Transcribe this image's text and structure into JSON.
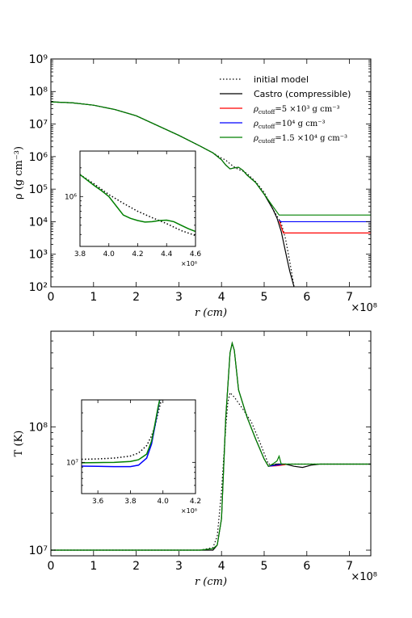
{
  "chart_data": [
    {
      "type": "line",
      "ylabel": "ρ  (g cm⁻³)",
      "xlabel": "r  (cm)",
      "x_multiplier": "×10⁸",
      "x_unit_scale": 100000000.0,
      "xlim": [
        0,
        7.5
      ],
      "ylim": [
        100,
        1000000000
      ],
      "yscale": "log",
      "x_ticks": [
        "0",
        "1",
        "2",
        "3",
        "4",
        "5",
        "6",
        "7"
      ],
      "y_ticks": [
        "10²",
        "10³",
        "10⁴",
        "10⁵",
        "10⁶",
        "10⁷",
        "10⁸",
        "10⁹"
      ],
      "legend_position": "top-right",
      "series": [
        {
          "name": "initial model",
          "color": "#000000",
          "dash": "dotted",
          "x": [
            0,
            0.5,
            1,
            1.5,
            2,
            2.5,
            3,
            3.5,
            3.8,
            4.0,
            4.1,
            4.2,
            4.3,
            4.4,
            4.5,
            4.6,
            4.8,
            5.0,
            5.2,
            5.4,
            5.5,
            5.6,
            5.7
          ],
          "y": [
            48000000,
            45000000,
            38000000,
            28000000,
            18000000,
            9000000,
            4500000,
            2100000,
            1300000,
            900000,
            780000,
            600000,
            480000,
            400000,
            360000,
            300000,
            170000,
            80000,
            25000,
            9000,
            3000,
            600,
            100
          ]
        },
        {
          "name": "Castro (compressible)",
          "color": "#000000",
          "dash": "solid",
          "x": [
            0,
            0.5,
            1,
            1.5,
            2,
            2.5,
            3,
            3.5,
            3.8,
            4.0,
            4.1,
            4.2,
            4.3,
            4.4,
            4.5,
            4.6,
            4.8,
            5.0,
            5.2,
            5.3,
            5.4,
            5.5,
            5.6,
            5.7
          ],
          "y": [
            48000000,
            45000000,
            38000000,
            28000000,
            18000000,
            9000000,
            4500000,
            2100000,
            1300000,
            800000,
            550000,
            420000,
            450000,
            470000,
            380000,
            270000,
            160000,
            70000,
            25000,
            13000,
            5000,
            1200,
            300,
            100
          ]
        },
        {
          "name": "ρ_cutoff = 5 × 10³  g cm⁻³",
          "color": "#ff0000",
          "dash": "solid",
          "x": [
            5.35,
            5.4,
            5.45,
            7.5
          ],
          "y": [
            11000,
            7000,
            4500,
            4500
          ]
        },
        {
          "name": "ρ_cutoff = 10⁴  g cm⁻³",
          "color": "#0000ff",
          "dash": "solid",
          "x": [
            5.35,
            5.4,
            7.5
          ],
          "y": [
            11000,
            10000,
            10000
          ]
        },
        {
          "name": "ρ_cutoff = 1.5 × 10⁴  g cm⁻³",
          "color": "#008000",
          "dash": "solid",
          "x": [
            0,
            0.5,
            1,
            1.5,
            2,
            2.5,
            3,
            3.5,
            3.8,
            4.0,
            4.1,
            4.2,
            4.3,
            4.4,
            4.5,
            4.6,
            4.8,
            5.0,
            5.2,
            5.35,
            5.4,
            7.5
          ],
          "y": [
            48000000,
            45000000,
            38000000,
            28000000,
            18000000,
            9000000,
            4500000,
            2100000,
            1300000,
            800000,
            550000,
            420000,
            450000,
            470000,
            380000,
            270000,
            160000,
            70000,
            30000,
            16000,
            16000,
            16000
          ]
        }
      ],
      "inset": {
        "xlim": [
          3.8,
          4.6
        ],
        "ylim": [
          300000,
          3000000
        ],
        "yscale": "log",
        "x_ticks": [
          "3.8",
          "4.0",
          "4.2",
          "4.4",
          "4.6"
        ],
        "y_ticks": [
          "10⁶"
        ],
        "x_multiplier": "×10⁸",
        "series": [
          {
            "name": "initial model",
            "color": "#000000",
            "dash": "dotted",
            "x": [
              3.8,
              3.9,
              4.0,
              4.1,
              4.2,
              4.3,
              4.4,
              4.5,
              4.6
            ],
            "y": [
              1700000,
              1350000,
              1050000,
              850000,
              700000,
              600000,
              520000,
              440000,
              390000
            ]
          },
          {
            "name": "ρ_cutoff = 1.5 × 10⁴  g cm⁻³",
            "color": "#008000",
            "dash": "solid",
            "x": [
              3.8,
              3.9,
              3.95,
              4.0,
              4.05,
              4.1,
              4.15,
              4.2,
              4.25,
              4.3,
              4.35,
              4.4,
              4.45,
              4.5,
              4.55,
              4.6
            ],
            "y": [
              1700000,
              1300000,
              1150000,
              1000000,
              800000,
              640000,
              590000,
              560000,
              540000,
              545000,
              560000,
              565000,
              545000,
              500000,
              460000,
              430000
            ]
          }
        ]
      }
    },
    {
      "type": "line",
      "ylabel": "T  (K)",
      "xlabel": "r  (cm)",
      "x_multiplier": "×10⁸",
      "x_unit_scale": 100000000.0,
      "xlim": [
        0,
        7.5
      ],
      "ylim": [
        9000000,
        600000000
      ],
      "yscale": "log",
      "x_ticks": [
        "0",
        "1",
        "2",
        "3",
        "4",
        "5",
        "6",
        "7"
      ],
      "y_ticks": [
        "10⁷",
        "10⁸"
      ],
      "series": [
        {
          "name": "initial model",
          "color": "#000000",
          "dash": "dotted",
          "x": [
            0,
            1,
            2,
            3,
            3.5,
            3.8,
            3.9,
            4.0,
            4.1,
            4.15,
            4.2,
            4.3,
            4.5,
            4.7,
            4.9,
            5.1,
            5.2,
            5.4,
            6,
            7,
            7.5
          ],
          "y": [
            10000000,
            10000000,
            10000000,
            10000000,
            10000000,
            10500000,
            13000000,
            30000000,
            100000000,
            160000000,
            190000000,
            175000000,
            140000000,
            110000000,
            75000000,
            50000000,
            50000000,
            50000000,
            50000000,
            50000000,
            50000000
          ]
        },
        {
          "name": "Castro (compressible)",
          "color": "#000000",
          "dash": "solid",
          "x": [
            0,
            1,
            2,
            3,
            3.5,
            3.8,
            3.9,
            4.0,
            4.1,
            4.2,
            4.25,
            4.3,
            4.4,
            4.6,
            4.8,
            5.0,
            5.1,
            5.3,
            5.5,
            5.7,
            5.9,
            6.1,
            6.3,
            7,
            7.5
          ],
          "y": [
            10000000,
            10000000,
            10000000,
            10000000,
            10000000,
            10000000,
            11000000,
            18000000,
            120000000,
            400000000,
            480000000,
            420000000,
            200000000,
            120000000,
            80000000,
            55000000,
            48000000,
            50000000,
            50000000,
            48000000,
            47000000,
            49000000,
            50000000,
            50000000,
            50000000
          ]
        },
        {
          "name": "ρ_cutoff = 5 × 10³  g cm⁻³",
          "color": "#ff0000",
          "dash": "solid",
          "x": [
            5.1,
            5.3,
            5.5
          ],
          "y": [
            48000000,
            48500000,
            49500000
          ]
        },
        {
          "name": "ρ_cutoff = 10⁴  g cm⁻³",
          "color": "#0000ff",
          "dash": "solid",
          "x": [
            5.1,
            5.3,
            5.45
          ],
          "y": [
            48000000,
            49000000,
            50000000
          ]
        },
        {
          "name": "ρ_cutoff = 1.5 × 10⁴  g cm⁻³",
          "color": "#008000",
          "dash": "solid",
          "x": [
            0,
            1,
            2,
            3,
            3.5,
            3.8,
            3.9,
            4.0,
            4.1,
            4.2,
            4.25,
            4.3,
            4.4,
            4.6,
            4.8,
            5.0,
            5.1,
            5.2,
            5.3,
            5.35,
            5.4,
            5.5,
            6,
            7,
            7.5
          ],
          "y": [
            10000000,
            10000000,
            10000000,
            10000000,
            10000000,
            10300000,
            11000000,
            18000000,
            120000000,
            400000000,
            480000000,
            420000000,
            200000000,
            120000000,
            80000000,
            55000000,
            48000000,
            50000000,
            53000000,
            58000000,
            50000000,
            50000000,
            50000000,
            50000000,
            50000000
          ]
        }
      ],
      "inset": {
        "xlim": [
          3.5,
          4.2
        ],
        "ylim": [
          5000000,
          40000000
        ],
        "yscale": "log",
        "x_ticks": [
          "3.6",
          "3.8",
          "4.0",
          "4.2"
        ],
        "y_ticks": [
          "10⁷"
        ],
        "x_multiplier": "×10⁸",
        "series": [
          {
            "name": "initial model",
            "color": "#000000",
            "dash": "dotted",
            "x": [
              3.5,
              3.6,
              3.7,
              3.8,
              3.85,
              3.9,
              3.93,
              3.95,
              3.97,
              3.99
            ],
            "y": [
              10700000,
              10800000,
              11000000,
              11500000,
              12300000,
              14500000,
              18000000,
              22000000,
              30000000,
              40000000
            ]
          },
          {
            "name": "ρ_cutoff = 10⁴  g cm⁻³",
            "color": "#0000ff",
            "dash": "solid",
            "x": [
              3.5,
              3.6,
              3.7,
              3.8,
              3.85,
              3.9,
              3.93,
              3.95,
              3.97,
              3.98
            ],
            "y": [
              9200000,
              9150000,
              9100000,
              9100000,
              9400000,
              11000000,
              15000000,
              22000000,
              33000000,
              40000000
            ]
          },
          {
            "name": "ρ_cutoff = 1.5 × 10⁴  g cm⁻³",
            "color": "#008000",
            "dash": "solid",
            "x": [
              3.5,
              3.6,
              3.7,
              3.8,
              3.85,
              3.9,
              3.93,
              3.95,
              3.97,
              3.98
            ],
            "y": [
              9900000,
              9950000,
              10000000,
              10200000,
              10600000,
              12000000,
              16000000,
              23000000,
              34000000,
              40000000
            ]
          }
        ]
      }
    }
  ],
  "legend": {
    "entries": [
      {
        "label": "initial model",
        "color": "#000000",
        "dash": "dotted"
      },
      {
        "label": "Castro (compressible)",
        "color": "#000000",
        "dash": "solid"
      },
      {
        "label_main": "ρ",
        "label_sub": "cutoff",
        "label_rest": "=5 ×10³  g cm⁻³",
        "color": "#ff0000",
        "dash": "solid"
      },
      {
        "label_main": "ρ",
        "label_sub": "cutoff",
        "label_rest": "=10⁴  g cm⁻³",
        "color": "#0000ff",
        "dash": "solid"
      },
      {
        "label_main": "ρ",
        "label_sub": "cutoff",
        "label_rest": "=1.5 ×10⁴  g cm⁻³",
        "color": "#008000",
        "dash": "solid"
      }
    ]
  }
}
